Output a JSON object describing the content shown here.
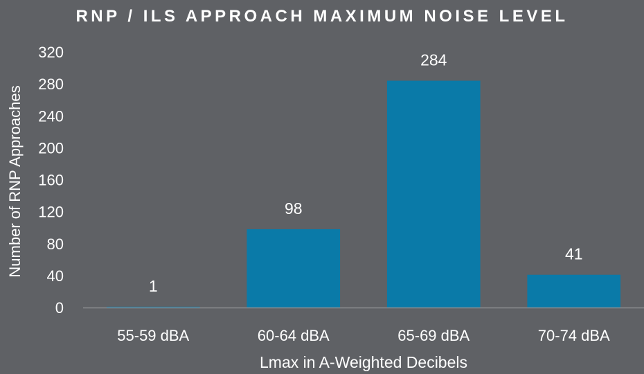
{
  "chart_data": {
    "type": "bar",
    "title": "RNP / ILS APPROACH MAXIMUM NOISE LEVEL",
    "xlabel": "Lmax in A-Weighted Decibels",
    "ylabel": "Number of RNP Approaches",
    "categories": [
      "55-59 dBA",
      "60-64 dBA",
      "65-69 dBA",
      "70-74 dBA"
    ],
    "values": [
      1,
      98,
      284,
      41
    ],
    "data_labels": [
      "1",
      "98",
      "284",
      "41"
    ],
    "ylim": [
      0,
      320
    ],
    "yticks": [
      "0",
      "40",
      "80",
      "120",
      "160",
      "200",
      "240",
      "280",
      "320"
    ],
    "grid": false,
    "legend": "none",
    "colors": {
      "bar": "#0a7aa8",
      "background": "#5f6165",
      "axis": "#8a8c8f",
      "text": "#ffffff"
    }
  }
}
